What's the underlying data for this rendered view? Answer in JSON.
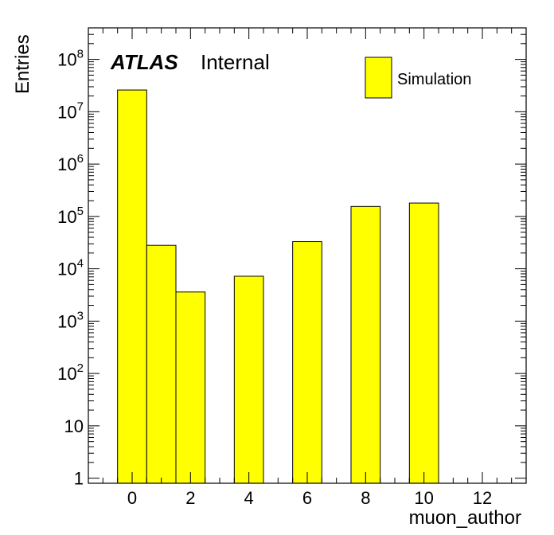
{
  "chart_data": {
    "type": "bar",
    "title": "",
    "xlabel": "muon_author",
    "ylabel": "Entries",
    "ylog": true,
    "xlim": [
      -1.5,
      13.5
    ],
    "ylim": [
      0.8,
      400000000
    ],
    "bin_width": 1,
    "color": "#ffff00",
    "edge_color": "#000000",
    "x": [
      0,
      1,
      2,
      4,
      6,
      8,
      10
    ],
    "values": [
      26000000,
      28000,
      3600,
      7200,
      33000,
      155000,
      180000
    ],
    "series": [
      {
        "name": "Simulation",
        "values": [
          26000000,
          28000,
          3600,
          7200,
          33000,
          155000,
          180000
        ]
      }
    ],
    "x_ticks": [
      {
        "value": 0,
        "label": "0"
      },
      {
        "value": 2,
        "label": "2"
      },
      {
        "value": 4,
        "label": "4"
      },
      {
        "value": 6,
        "label": "6"
      },
      {
        "value": 8,
        "label": "8"
      },
      {
        "value": 10,
        "label": "10"
      },
      {
        "value": 12,
        "label": "12"
      }
    ],
    "y_ticks": [
      {
        "value": 1,
        "base": "1",
        "exp": ""
      },
      {
        "value": 10,
        "base": "10",
        "exp": ""
      },
      {
        "value": 100,
        "base": "10",
        "exp": "2"
      },
      {
        "value": 1000,
        "base": "10",
        "exp": "3"
      },
      {
        "value": 10000,
        "base": "10",
        "exp": "4"
      },
      {
        "value": 100000,
        "base": "10",
        "exp": "5"
      },
      {
        "value": 1000000,
        "base": "10",
        "exp": "6"
      },
      {
        "value": 10000000,
        "base": "10",
        "exp": "7"
      },
      {
        "value": 100000000,
        "base": "10",
        "exp": "8"
      }
    ],
    "legend": {
      "position": "top-right",
      "entries": [
        "Simulation"
      ]
    },
    "annotation": {
      "label_bold": "ATLAS",
      "label_rest": "Internal"
    },
    "grid": false
  }
}
